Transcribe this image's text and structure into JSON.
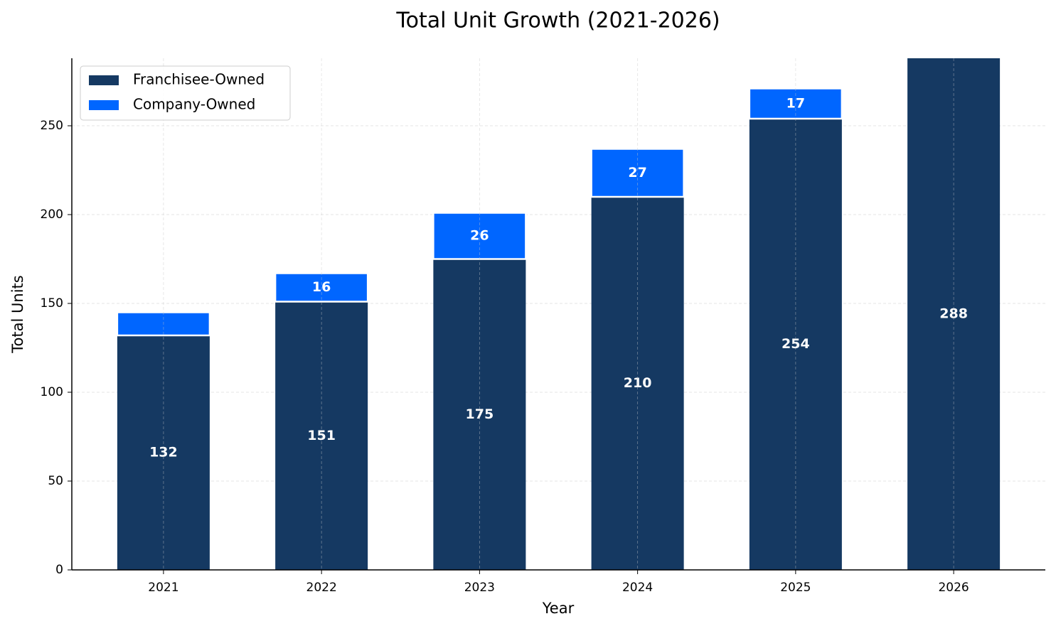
{
  "chart_data": {
    "type": "stacked-bar",
    "title": "Total Unit Growth (2021-2026)",
    "x_label": "Year",
    "y_label": "Total Units",
    "categories": [
      "2021",
      "2022",
      "2023",
      "2024",
      "2025",
      "2026"
    ],
    "series": [
      {
        "name": "Franchisee-Owned",
        "color": "#153962",
        "values": [
          132,
          151,
          175,
          210,
          254,
          288
        ]
      },
      {
        "name": "Company-Owned",
        "color": "#0066ff",
        "values": [
          13,
          16,
          26,
          27,
          17,
          0
        ],
        "value_labels": [
          null,
          "16",
          "26",
          "27",
          "17",
          null
        ]
      }
    ],
    "ylim": [
      0,
      288
    ],
    "yticks": [
      0,
      50,
      100,
      150,
      200,
      250
    ],
    "grid": true,
    "legend": "upper-left"
  }
}
